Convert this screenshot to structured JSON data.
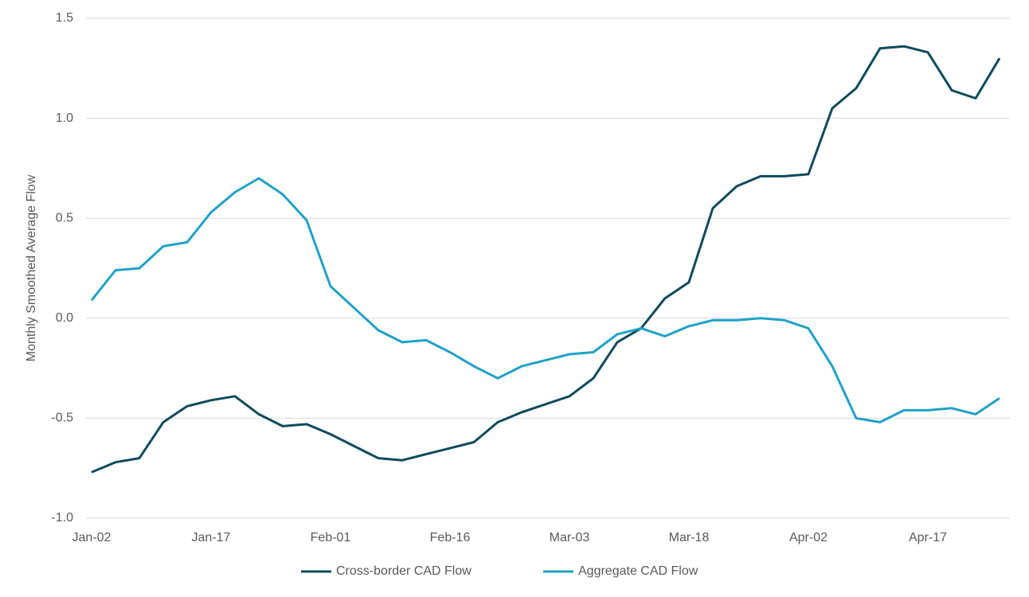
{
  "chart_data": {
    "type": "line",
    "y_label": "Monthly Smoothed Average Flow",
    "categories": [
      "Jan-02",
      null,
      null,
      null,
      null,
      "Jan-17",
      null,
      null,
      null,
      null,
      "Feb-01",
      null,
      null,
      null,
      null,
      "Feb-16",
      null,
      null,
      null,
      null,
      "Mar-03",
      null,
      null,
      null,
      null,
      "Mar-18",
      null,
      null,
      null,
      null,
      "Apr-02",
      null,
      null,
      null,
      null,
      "Apr-17",
      null,
      null,
      null
    ],
    "series": [
      {
        "name": "Cross-border CAD Flow",
        "color": "#0e4a5e",
        "values": [
          -0.77,
          -0.72,
          -0.7,
          -0.52,
          -0.44,
          -0.41,
          -0.39,
          -0.48,
          -0.54,
          -0.53,
          -0.58,
          -0.64,
          -0.7,
          -0.71,
          -0.68,
          -0.65,
          -0.62,
          -0.52,
          -0.47,
          -0.43,
          -0.39,
          -0.3,
          -0.12,
          -0.05,
          0.1,
          0.18,
          0.55,
          0.66,
          0.71,
          0.71,
          0.72,
          1.05,
          1.15,
          1.35,
          1.36,
          1.33,
          1.14,
          1.1,
          1.3
        ]
      },
      {
        "name": "Aggregate CAD Flow",
        "color": "#1fa1c8",
        "values": [
          0.09,
          0.24,
          0.25,
          0.36,
          0.38,
          0.53,
          0.63,
          0.7,
          0.62,
          0.49,
          0.16,
          0.05,
          -0.06,
          -0.12,
          -0.11,
          -0.17,
          -0.24,
          -0.3,
          -0.24,
          -0.21,
          -0.18,
          -0.17,
          -0.08,
          -0.05,
          -0.09,
          -0.04,
          -0.01,
          -0.01,
          0.0,
          -0.01,
          -0.05,
          -0.24,
          -0.5,
          -0.52,
          -0.46,
          -0.46,
          -0.45,
          -0.48,
          -0.4
        ]
      }
    ],
    "ylim": [
      -1.0,
      1.5
    ],
    "yticks": [
      {
        "value": -1.0,
        "label": "-1.0"
      },
      -0.5,
      {
        "value": 0.0,
        "label": "0.0"
      },
      0.5,
      {
        "value": 1.0,
        "label": "1.0"
      },
      1.5
    ],
    "grid": true,
    "legend": "bottom"
  }
}
